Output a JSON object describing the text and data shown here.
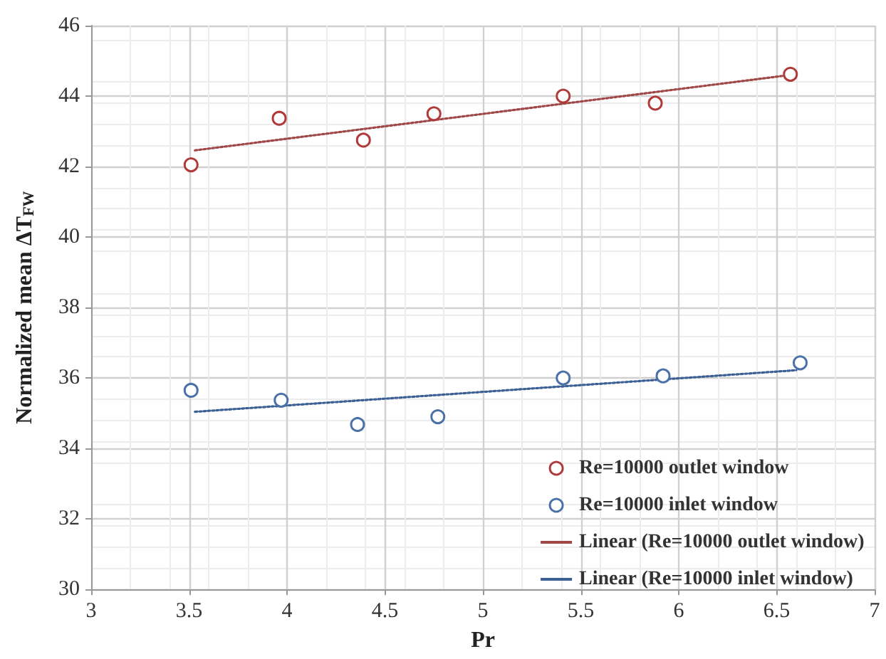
{
  "chart_data": {
    "type": "scatter",
    "xlabel": "Pr",
    "ylabel": "Normalized mean ΔT$_{FW}$",
    "xlim": [
      3,
      7
    ],
    "xticks": [
      3,
      3.5,
      4,
      4.5,
      5,
      5.5,
      6,
      6.5,
      7
    ],
    "ylim": [
      30,
      46
    ],
    "yticks": [
      30,
      32,
      34,
      36,
      38,
      40,
      42,
      44,
      46
    ],
    "grid": true,
    "legend": "bottom right",
    "series": [
      {
        "name": "Re=10000 outlet window",
        "color": "#b03a3a",
        "marker": "circle",
        "x": [
          3.51,
          3.96,
          4.39,
          4.75,
          5.41,
          5.88,
          6.57
        ],
        "values": [
          42.05,
          43.37,
          42.75,
          43.5,
          44.0,
          43.8,
          44.62
        ]
      },
      {
        "name": "Re=10000 inlet window",
        "color": "#4a72a8",
        "marker": "circle",
        "x": [
          3.51,
          3.97,
          4.36,
          4.77,
          5.41,
          5.92,
          6.62
        ],
        "values": [
          35.65,
          35.37,
          34.68,
          34.9,
          36.0,
          36.06,
          36.43
        ]
      },
      {
        "name": "Linear (Re=10000 outlet window)",
        "type": "line",
        "marker": "none",
        "line_style": "dotted",
        "color": "#a04848",
        "x": [
          3.53,
          6.57
        ],
        "values": [
          42.46,
          44.6
        ]
      },
      {
        "name": "Linear (Re=10000 inlet window)",
        "type": "line",
        "marker": "none",
        "line_style": "dotted",
        "color": "#3c5f94",
        "x": [
          3.53,
          6.6
        ],
        "values": [
          35.04,
          36.22
        ]
      }
    ]
  }
}
